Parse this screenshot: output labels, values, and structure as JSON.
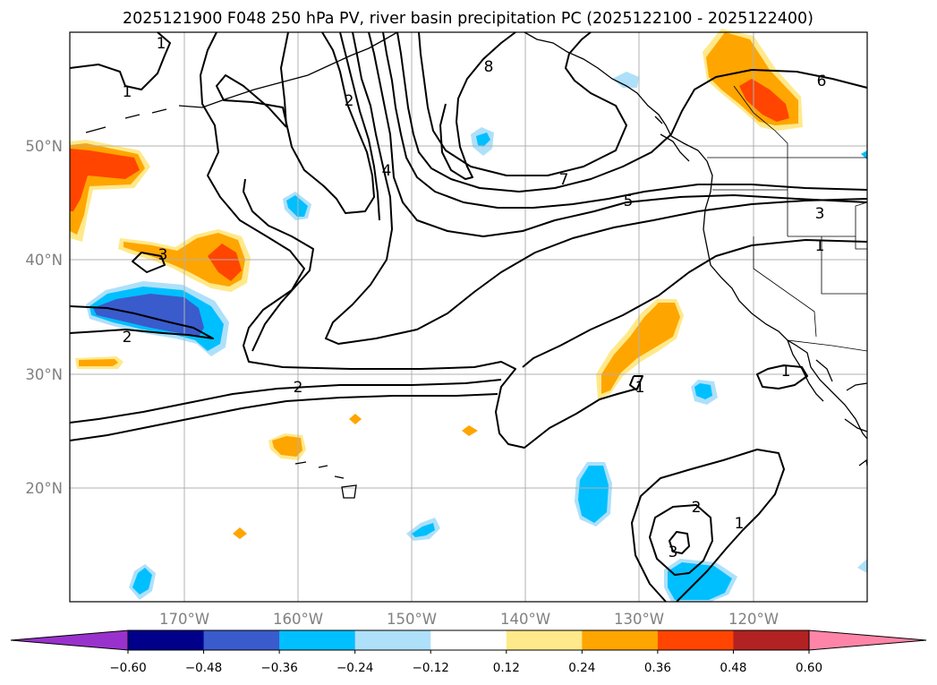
{
  "chart_data": {
    "type": "map",
    "title": "2025121900 F048 250 hPa PV, river basin precipitation PC (2025122100 - 2025122400)",
    "longitude_ticks": [
      "170°W",
      "160°W",
      "150°W",
      "140°W",
      "130°W",
      "120°W"
    ],
    "latitude_ticks": [
      "50°N",
      "40°N",
      "30°N",
      "20°N"
    ],
    "grid": true,
    "contour_field": "250 hPa PV",
    "contour_labels": [
      "1",
      "1",
      "1",
      "1",
      "1",
      "1",
      "2",
      "2",
      "2",
      "2",
      "3",
      "3",
      "3",
      "4",
      "5",
      "6",
      "7",
      "8"
    ],
    "colorbar": {
      "orientation": "horizontal",
      "extend": "both",
      "ticks": [
        "−0.60",
        "−0.48",
        "−0.36",
        "−0.24",
        "−0.12",
        "0.12",
        "0.24",
        "0.36",
        "0.48",
        "0.60"
      ],
      "colors": [
        "#9932cc",
        "#00008b",
        "#3a5bcc",
        "#00bfff",
        "#aee0fa",
        "#ffffff",
        "#ffe98a",
        "#ffa500",
        "#ff4500",
        "#b22222",
        "#ff85a8"
      ]
    }
  }
}
